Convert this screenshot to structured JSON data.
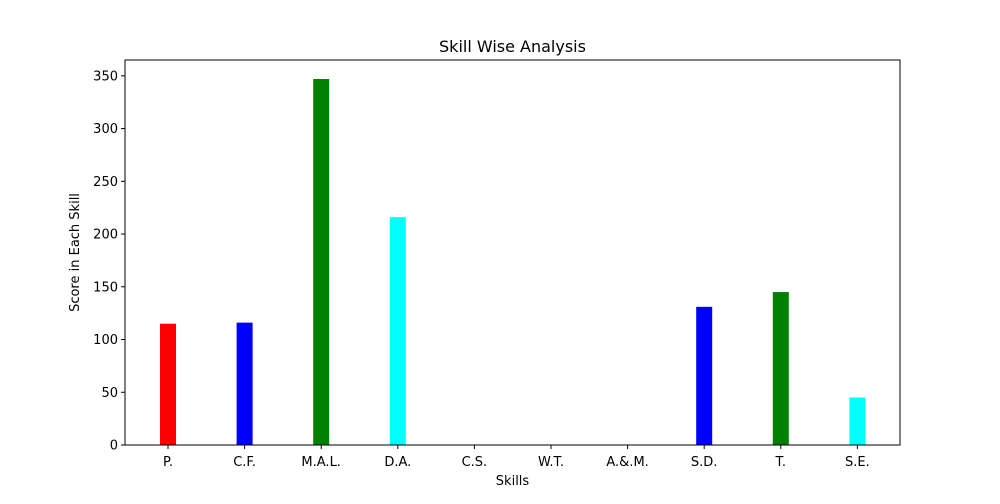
{
  "chart_data": {
    "type": "bar",
    "title": "Skill Wise Analysis",
    "xlabel": "Skills",
    "ylabel": "Score in Each Skill",
    "categories": [
      "P.",
      "C.F.",
      "M.A.L.",
      "D.A.",
      "C.S.",
      "W.T.",
      "A.&.M.",
      "S.D.",
      "T.",
      "S.E."
    ],
    "values": [
      115,
      116,
      347,
      216,
      0,
      0,
      0,
      131,
      145,
      45
    ],
    "colors": [
      "#ff0000",
      "#0000ff",
      "#008000",
      "#00ffff",
      "#ff0000",
      "#0000ff",
      "#008000",
      "#0000ff",
      "#008000",
      "#00ffff"
    ],
    "ylim": [
      0,
      365
    ],
    "yticks": [
      0,
      50,
      100,
      150,
      200,
      250,
      300,
      350
    ],
    "grid": false,
    "legend": "none"
  }
}
